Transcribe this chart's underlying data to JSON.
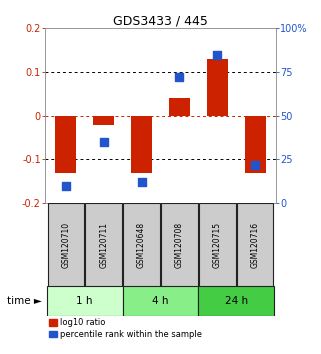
{
  "title": "GDS3433 / 445",
  "samples": [
    "GSM120710",
    "GSM120711",
    "GSM120648",
    "GSM120708",
    "GSM120715",
    "GSM120716"
  ],
  "log10_ratio": [
    -0.13,
    -0.02,
    -0.13,
    0.04,
    0.13,
    -0.13
  ],
  "percentile_rank": [
    10,
    35,
    12,
    72,
    85,
    22
  ],
  "ylim_left": [
    -0.2,
    0.2
  ],
  "ylim_right": [
    0,
    100
  ],
  "yticks_left": [
    -0.2,
    -0.1,
    0.0,
    0.1,
    0.2
  ],
  "yticks_right": [
    0,
    25,
    50,
    75,
    100
  ],
  "ytick_labels_left": [
    "-0.2",
    "-0.1",
    "0",
    "0.1",
    "0.2"
  ],
  "ytick_labels_right": [
    "0",
    "25",
    "50",
    "75",
    "100%"
  ],
  "bar_color": "#cc2200",
  "dot_color": "#2255cc",
  "grid_color": "#000000",
  "zero_line_color": "#cc2200",
  "time_groups": [
    {
      "label": "1 h",
      "start": 0,
      "end": 2,
      "color": "#ccffcc"
    },
    {
      "label": "4 h",
      "start": 2,
      "end": 4,
      "color": "#88ee88"
    },
    {
      "label": "24 h",
      "start": 4,
      "end": 6,
      "color": "#44cc44"
    }
  ],
  "time_label": "time",
  "legend_bar_label": "log10 ratio",
  "legend_dot_label": "percentile rank within the sample",
  "bar_width": 0.55,
  "dot_size": 28,
  "sample_box_color": "#cccccc",
  "sample_box_edge": "#222222"
}
